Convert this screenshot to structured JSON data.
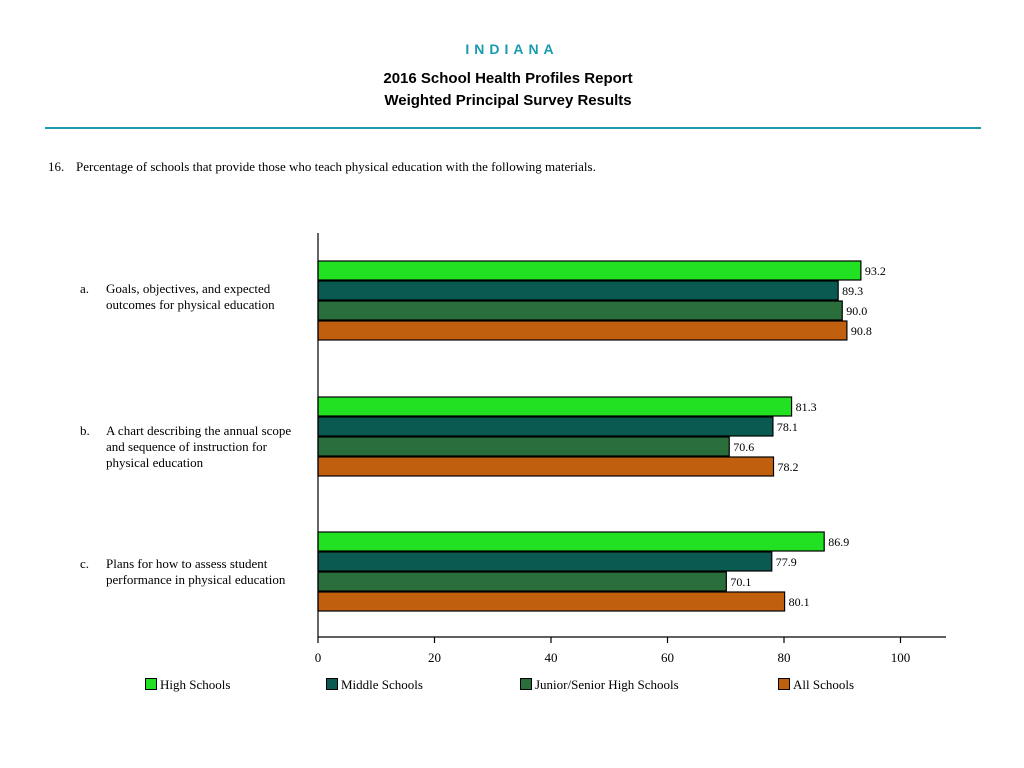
{
  "header": {
    "state": "INDIANA",
    "title": "2016 School Health Profiles Report",
    "subtitle": "Weighted Principal Survey Results"
  },
  "question": {
    "number": "16.",
    "text": "Percentage of schools that provide those who teach physical education with the following materials."
  },
  "chart_data": {
    "type": "bar",
    "orientation": "horizontal",
    "categories": [
      {
        "letter": "a.",
        "label": "Goals, objectives, and expected outcomes for physical education"
      },
      {
        "letter": "b.",
        "label": "A chart describing the annual scope and sequence of instruction for physical education"
      },
      {
        "letter": "c.",
        "label": "Plans for how to assess student performance in physical education"
      }
    ],
    "series": [
      {
        "name": "High Schools",
        "color": "#22e022",
        "values": [
          93.2,
          81.3,
          86.9
        ],
        "labels": [
          "93.2",
          "81.3",
          "86.9"
        ]
      },
      {
        "name": "Middle Schools",
        "color": "#0b5a52",
        "values": [
          89.3,
          78.1,
          77.9
        ],
        "labels": [
          "89.3",
          "78.1",
          "77.9"
        ]
      },
      {
        "name": "Junior/Senior High Schools",
        "color": "#2a6e3c",
        "values": [
          90.0,
          70.6,
          70.1
        ],
        "labels": [
          "90.0",
          "70.6",
          "70.1"
        ]
      },
      {
        "name": "All Schools",
        "color": "#c0600f",
        "values": [
          90.8,
          78.2,
          80.1
        ],
        "labels": [
          "90.8",
          "78.2",
          "80.1"
        ]
      }
    ],
    "xlim": [
      0,
      108
    ],
    "xticks": [
      "0",
      "20",
      "40",
      "60",
      "80",
      "100"
    ],
    "grid": false,
    "legend_position": "bottom"
  }
}
